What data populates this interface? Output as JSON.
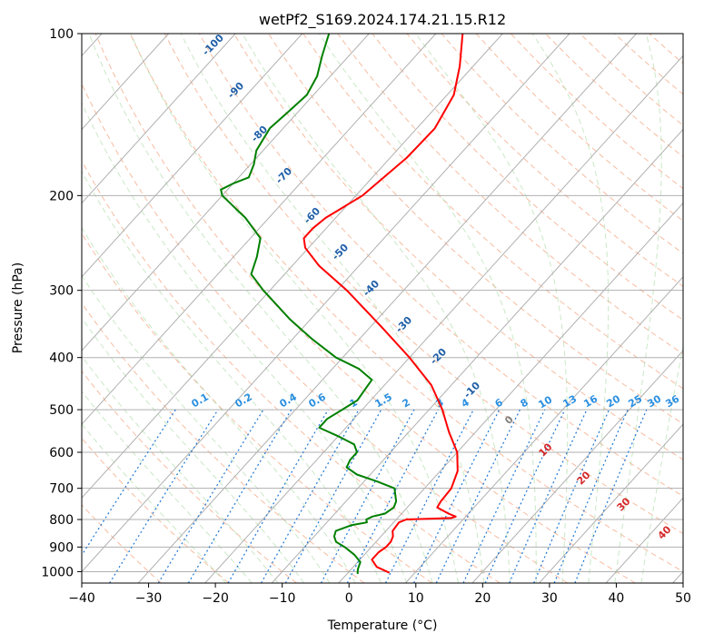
{
  "chart_data": {
    "type": "line",
    "title": "wetPf2_S169.2024.174.21.15.R12",
    "xlabel": "Temperature (°C)",
    "ylabel": "Pressure (hPa)",
    "xlim": [
      -40,
      50
    ],
    "ylim": [
      1050,
      100
    ],
    "y_scale": "log",
    "grid": true,
    "x_ticks": [
      -40,
      -30,
      -20,
      -10,
      0,
      10,
      20,
      30,
      40,
      50
    ],
    "y_ticks": [
      100,
      200,
      300,
      400,
      500,
      600,
      700,
      800,
      900,
      1000
    ],
    "skew_degrees_per_decade": 73,
    "series": [
      {
        "color": "#ff0000",
        "points": [
          [
            1005,
            6.2
          ],
          [
            980,
            3.5
          ],
          [
            950,
            1.8
          ],
          [
            920,
            1.8
          ],
          [
            900,
            2.2
          ],
          [
            880,
            2.2
          ],
          [
            860,
            1.8
          ],
          [
            840,
            1.0
          ],
          [
            810,
            0.8
          ],
          [
            800,
            1.5
          ],
          [
            795,
            8.0
          ],
          [
            790,
            8.5
          ],
          [
            780,
            7.0
          ],
          [
            760,
            4.5
          ],
          [
            740,
            4.2
          ],
          [
            700,
            4.0
          ],
          [
            650,
            2.6
          ],
          [
            600,
            0.0
          ],
          [
            550,
            -4.0
          ],
          [
            500,
            -8.0
          ],
          [
            450,
            -13.0
          ],
          [
            400,
            -20.0
          ],
          [
            350,
            -28.5
          ],
          [
            300,
            -38.5
          ],
          [
            270,
            -46.0
          ],
          [
            250,
            -50.5
          ],
          [
            240,
            -52.0
          ],
          [
            230,
            -52.0
          ],
          [
            220,
            -51.5
          ],
          [
            200,
            -49.0
          ],
          [
            170,
            -47.5
          ],
          [
            150,
            -47.3
          ],
          [
            130,
            -49.0
          ],
          [
            115,
            -52.0
          ],
          [
            100,
            -56.0
          ]
        ]
      },
      {
        "color": "#008000",
        "points": [
          [
            1010,
            1.6
          ],
          [
            990,
            1.0
          ],
          [
            960,
            0.4
          ],
          [
            930,
            -1.5
          ],
          [
            900,
            -4.0
          ],
          [
            880,
            -6.0
          ],
          [
            860,
            -7.0
          ],
          [
            840,
            -7.5
          ],
          [
            820,
            -6.0
          ],
          [
            810,
            -4.0
          ],
          [
            800,
            -4.5
          ],
          [
            790,
            -4.0
          ],
          [
            780,
            -2.5
          ],
          [
            760,
            -2.0
          ],
          [
            740,
            -2.5
          ],
          [
            700,
            -4.5
          ],
          [
            680,
            -8.0
          ],
          [
            660,
            -12.0
          ],
          [
            640,
            -14.5
          ],
          [
            620,
            -15.0
          ],
          [
            600,
            -15.0
          ],
          [
            580,
            -16.5
          ],
          [
            560,
            -20.0
          ],
          [
            540,
            -24.0
          ],
          [
            520,
            -24.0
          ],
          [
            500,
            -23.0
          ],
          [
            480,
            -22.0
          ],
          [
            460,
            -22.3
          ],
          [
            440,
            -22.6
          ],
          [
            420,
            -26.0
          ],
          [
            400,
            -31.0
          ],
          [
            370,
            -37.0
          ],
          [
            340,
            -43.0
          ],
          [
            300,
            -51.0
          ],
          [
            280,
            -55.0
          ],
          [
            260,
            -56.5
          ],
          [
            240,
            -58.5
          ],
          [
            220,
            -63.5
          ],
          [
            200,
            -70.0
          ],
          [
            195,
            -71.0
          ],
          [
            190,
            -70.0
          ],
          [
            185,
            -68.5
          ],
          [
            175,
            -69.5
          ],
          [
            165,
            -71.0
          ],
          [
            150,
            -72.0
          ],
          [
            140,
            -71.5
          ],
          [
            130,
            -71.0
          ],
          [
            120,
            -72.0
          ],
          [
            110,
            -74.0
          ],
          [
            100,
            -76.0
          ]
        ]
      }
    ],
    "dry_adiabat_labels": [
      "-100",
      "-90",
      "-80",
      "-70",
      "-60",
      "-50",
      "-40",
      "-30",
      "-20",
      "-10"
    ],
    "mixing_ratio_labels": [
      "0.1",
      "0.2",
      "0.4",
      "0.6",
      "1",
      "1.5",
      "2",
      "3",
      "4",
      "6",
      "8",
      "10",
      "13",
      "16",
      "20",
      "25",
      "30",
      "36"
    ],
    "moist_adiabat_labels": [
      "0",
      "10",
      "20",
      "30",
      "40"
    ],
    "colors": {
      "temperature": "#ff0000",
      "dewpoint": "#008000",
      "isotherm": "#b0b0b0",
      "dry_adiabat": "#f4a582",
      "moist_adiabat": "#a6d9a0",
      "mixing_ratio": "#1f77d4",
      "dry_label": "#1f5fa8",
      "mixing_label": "#2a8fe0",
      "moist_label": "#d62728"
    }
  }
}
